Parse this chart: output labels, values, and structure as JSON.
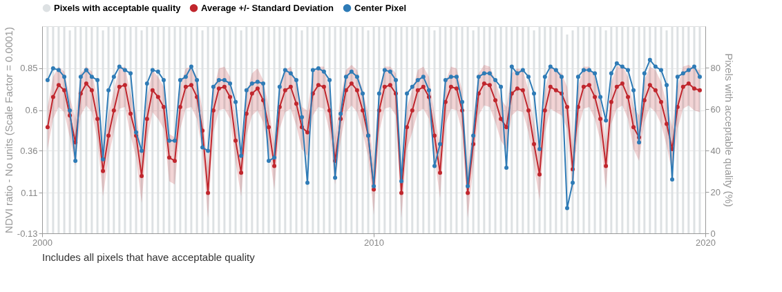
{
  "chart_data": {
    "type": "line",
    "xlabel": null,
    "ylabel": "NDVI ratio - No units (Scale Factor = 0.0001)",
    "y2label": "Pixels with acceptable quality (%)",
    "annotations": [
      "Includes all pixels that have acceptable quality"
    ],
    "x": [
      "2000-03",
      "2000-05",
      "2000-07",
      "2000-09",
      "2000-11",
      "2001-01",
      "2001-03",
      "2001-05",
      "2001-07",
      "2001-09",
      "2001-11",
      "2002-01",
      "2002-03",
      "2002-05",
      "2002-07",
      "2002-09",
      "2002-11",
      "2003-01",
      "2003-03",
      "2003-05",
      "2003-07",
      "2003-09",
      "2003-11",
      "2004-01",
      "2004-03",
      "2004-05",
      "2004-07",
      "2004-09",
      "2004-11",
      "2005-01",
      "2005-03",
      "2005-05",
      "2005-07",
      "2005-09",
      "2005-11",
      "2006-01",
      "2006-03",
      "2006-05",
      "2006-07",
      "2006-09",
      "2006-11",
      "2007-01",
      "2007-03",
      "2007-05",
      "2007-07",
      "2007-09",
      "2007-11",
      "2008-01",
      "2008-03",
      "2008-05",
      "2008-07",
      "2008-09",
      "2008-11",
      "2009-01",
      "2009-03",
      "2009-05",
      "2009-07",
      "2009-09",
      "2009-11",
      "2010-01",
      "2010-03",
      "2010-05",
      "2010-07",
      "2010-09",
      "2010-11",
      "2011-01",
      "2011-03",
      "2011-05",
      "2011-07",
      "2011-09",
      "2011-11",
      "2012-01",
      "2012-03",
      "2012-05",
      "2012-07",
      "2012-09",
      "2012-11",
      "2013-01",
      "2013-03",
      "2013-05",
      "2013-07",
      "2013-09",
      "2013-11",
      "2014-01",
      "2014-03",
      "2014-05",
      "2014-07",
      "2014-09",
      "2014-11",
      "2015-01",
      "2015-03",
      "2015-05",
      "2015-07",
      "2015-09",
      "2015-11",
      "2016-01",
      "2016-03",
      "2016-05",
      "2016-07",
      "2016-09",
      "2016-11",
      "2017-01",
      "2017-03",
      "2017-05",
      "2017-07",
      "2017-09",
      "2017-11",
      "2018-01",
      "2018-03",
      "2018-05",
      "2018-07",
      "2018-09",
      "2018-11",
      "2019-01",
      "2019-03",
      "2019-05",
      "2019-07",
      "2019-09",
      "2019-11"
    ],
    "series": [
      {
        "name": "Pixels with acceptable quality",
        "type": "bar",
        "axis": "y2",
        "color": "#dde1e3",
        "values": [
          100,
          100,
          100,
          100,
          98,
          100,
          100,
          100,
          100,
          100,
          98,
          100,
          100,
          100,
          100,
          100,
          100,
          98,
          100,
          100,
          100,
          100,
          100,
          100,
          100,
          100,
          100,
          100,
          98,
          100,
          100,
          100,
          100,
          100,
          100,
          98,
          100,
          100,
          100,
          100,
          100,
          100,
          100,
          100,
          100,
          100,
          98,
          100,
          100,
          100,
          100,
          100,
          100,
          100,
          100,
          100,
          100,
          100,
          98,
          100,
          100,
          100,
          100,
          100,
          100,
          100,
          100,
          100,
          100,
          100,
          98,
          100,
          100,
          100,
          100,
          100,
          100,
          98,
          100,
          100,
          100,
          100,
          100,
          100,
          100,
          100,
          100,
          100,
          98,
          100,
          100,
          100,
          100,
          100,
          96,
          98,
          100,
          100,
          100,
          100,
          100,
          98,
          100,
          100,
          100,
          100,
          100,
          100,
          100,
          100,
          100,
          100,
          98,
          100,
          100,
          100,
          100,
          100,
          100
        ]
      },
      {
        "name": "Average +/- Standard Deviation",
        "type": "line",
        "color": "#c0262d",
        "values": [
          0.5,
          0.68,
          0.75,
          0.72,
          0.57,
          0.41,
          0.7,
          0.76,
          0.72,
          0.55,
          0.24,
          0.45,
          0.6,
          0.74,
          0.75,
          0.58,
          0.45,
          0.21,
          0.55,
          0.72,
          0.68,
          0.62,
          0.32,
          0.3,
          0.62,
          0.74,
          0.75,
          0.68,
          0.48,
          0.11,
          0.6,
          0.73,
          0.74,
          0.68,
          0.42,
          0.23,
          0.58,
          0.7,
          0.73,
          0.66,
          0.5,
          0.27,
          0.62,
          0.72,
          0.74,
          0.64,
          0.5,
          0.47,
          0.7,
          0.75,
          0.74,
          0.6,
          0.3,
          0.55,
          0.72,
          0.76,
          0.72,
          0.6,
          0.45,
          0.13,
          0.6,
          0.74,
          0.75,
          0.7,
          0.11,
          0.5,
          0.6,
          0.72,
          0.74,
          0.68,
          0.45,
          0.23,
          0.65,
          0.74,
          0.73,
          0.6,
          0.11,
          0.4,
          0.7,
          0.76,
          0.75,
          0.66,
          0.55,
          0.5,
          0.7,
          0.73,
          0.72,
          0.6,
          0.4,
          0.22,
          0.6,
          0.74,
          0.72,
          0.7,
          0.62,
          0.25,
          0.62,
          0.74,
          0.75,
          0.68,
          0.55,
          0.27,
          0.65,
          0.74,
          0.76,
          0.68,
          0.5,
          0.44,
          0.66,
          0.75,
          0.72,
          0.65,
          0.52,
          0.37,
          0.62,
          0.74,
          0.76,
          0.73,
          0.72
        ],
        "upper": [
          0.62,
          0.8,
          0.86,
          0.83,
          0.68,
          0.55,
          0.82,
          0.86,
          0.83,
          0.67,
          0.38,
          0.58,
          0.72,
          0.85,
          0.86,
          0.7,
          0.58,
          0.36,
          0.68,
          0.84,
          0.8,
          0.74,
          0.46,
          0.44,
          0.74,
          0.85,
          0.86,
          0.8,
          0.6,
          0.26,
          0.72,
          0.85,
          0.86,
          0.8,
          0.55,
          0.37,
          0.7,
          0.82,
          0.85,
          0.78,
          0.62,
          0.4,
          0.74,
          0.84,
          0.86,
          0.76,
          0.62,
          0.6,
          0.82,
          0.86,
          0.86,
          0.72,
          0.44,
          0.68,
          0.84,
          0.87,
          0.84,
          0.72,
          0.58,
          0.28,
          0.72,
          0.86,
          0.86,
          0.82,
          0.26,
          0.62,
          0.72,
          0.84,
          0.86,
          0.8,
          0.58,
          0.38,
          0.77,
          0.86,
          0.85,
          0.72,
          0.26,
          0.54,
          0.82,
          0.87,
          0.86,
          0.78,
          0.67,
          0.62,
          0.82,
          0.85,
          0.84,
          0.72,
          0.53,
          0.36,
          0.72,
          0.86,
          0.84,
          0.82,
          0.74,
          0.39,
          0.74,
          0.86,
          0.86,
          0.8,
          0.67,
          0.41,
          0.77,
          0.86,
          0.87,
          0.8,
          0.62,
          0.57,
          0.78,
          0.86,
          0.84,
          0.77,
          0.64,
          0.5,
          0.74,
          0.86,
          0.87,
          0.85,
          0.84
        ],
        "lower": [
          0.37,
          0.55,
          0.62,
          0.59,
          0.44,
          0.27,
          0.57,
          0.63,
          0.59,
          0.42,
          0.09,
          0.32,
          0.47,
          0.61,
          0.62,
          0.45,
          0.32,
          0.05,
          0.42,
          0.59,
          0.55,
          0.49,
          0.18,
          0.16,
          0.49,
          0.61,
          0.62,
          0.55,
          0.35,
          -0.04,
          0.47,
          0.6,
          0.61,
          0.55,
          0.29,
          0.09,
          0.45,
          0.57,
          0.6,
          0.53,
          0.37,
          0.13,
          0.49,
          0.59,
          0.61,
          0.51,
          0.37,
          0.33,
          0.57,
          0.62,
          0.61,
          0.47,
          0.16,
          0.42,
          0.59,
          0.63,
          0.59,
          0.47,
          0.32,
          -0.02,
          0.47,
          0.61,
          0.62,
          0.57,
          -0.04,
          0.37,
          0.47,
          0.59,
          0.61,
          0.55,
          0.32,
          0.08,
          0.52,
          0.61,
          0.6,
          0.47,
          -0.04,
          0.26,
          0.57,
          0.63,
          0.62,
          0.53,
          0.42,
          0.37,
          0.57,
          0.6,
          0.59,
          0.47,
          0.27,
          0.07,
          0.47,
          0.61,
          0.59,
          0.57,
          0.49,
          0.11,
          0.49,
          0.61,
          0.62,
          0.55,
          0.42,
          0.13,
          0.52,
          0.61,
          0.63,
          0.55,
          0.37,
          0.3,
          0.53,
          0.62,
          0.59,
          0.52,
          0.39,
          0.23,
          0.49,
          0.61,
          0.63,
          0.6,
          0.59
        ]
      },
      {
        "name": "Center Pixel",
        "color": "#2e7bb6",
        "values": [
          0.78,
          0.85,
          0.84,
          0.8,
          0.6,
          0.3,
          0.8,
          0.84,
          0.8,
          0.78,
          0.31,
          0.72,
          0.8,
          0.86,
          0.84,
          0.82,
          0.47,
          0.36,
          0.76,
          0.84,
          0.83,
          0.78,
          0.42,
          0.42,
          0.78,
          0.8,
          0.86,
          0.78,
          0.38,
          0.36,
          0.74,
          0.78,
          0.78,
          0.76,
          0.65,
          0.33,
          0.72,
          0.76,
          0.77,
          0.76,
          0.3,
          0.32,
          0.74,
          0.84,
          0.82,
          0.78,
          0.56,
          0.17,
          0.84,
          0.85,
          0.83,
          0.78,
          0.2,
          0.58,
          0.8,
          0.83,
          0.8,
          0.7,
          0.45,
          0.15,
          0.7,
          0.84,
          0.83,
          0.78,
          0.18,
          0.7,
          0.74,
          0.78,
          0.8,
          0.72,
          0.27,
          0.4,
          0.78,
          0.8,
          0.8,
          0.65,
          0.15,
          0.45,
          0.8,
          0.82,
          0.82,
          0.78,
          0.74,
          0.26,
          0.86,
          0.82,
          0.84,
          0.8,
          0.7,
          0.37,
          0.8,
          0.86,
          0.84,
          0.8,
          0.02,
          0.17,
          0.8,
          0.84,
          0.84,
          0.82,
          0.68,
          0.54,
          0.82,
          0.88,
          0.86,
          0.84,
          0.72,
          0.41,
          0.82,
          0.9,
          0.86,
          0.84,
          0.75,
          0.19,
          0.8,
          0.82,
          0.84,
          0.86,
          0.8
        ]
      }
    ],
    "xlim": [
      "2000",
      "2020"
    ],
    "xticks": [
      "2000",
      "2010",
      "2020"
    ],
    "ylim": [
      -0.13,
      1.1
    ],
    "yticks": [
      -0.13,
      0.11,
      0.36,
      0.6,
      0.85
    ],
    "y2lim": [
      0,
      100
    ],
    "y2ticks": [
      0,
      20,
      40,
      60,
      80
    ],
    "grid": "y",
    "legend": "top",
    "marker": "circle",
    "line_style": "solid"
  }
}
